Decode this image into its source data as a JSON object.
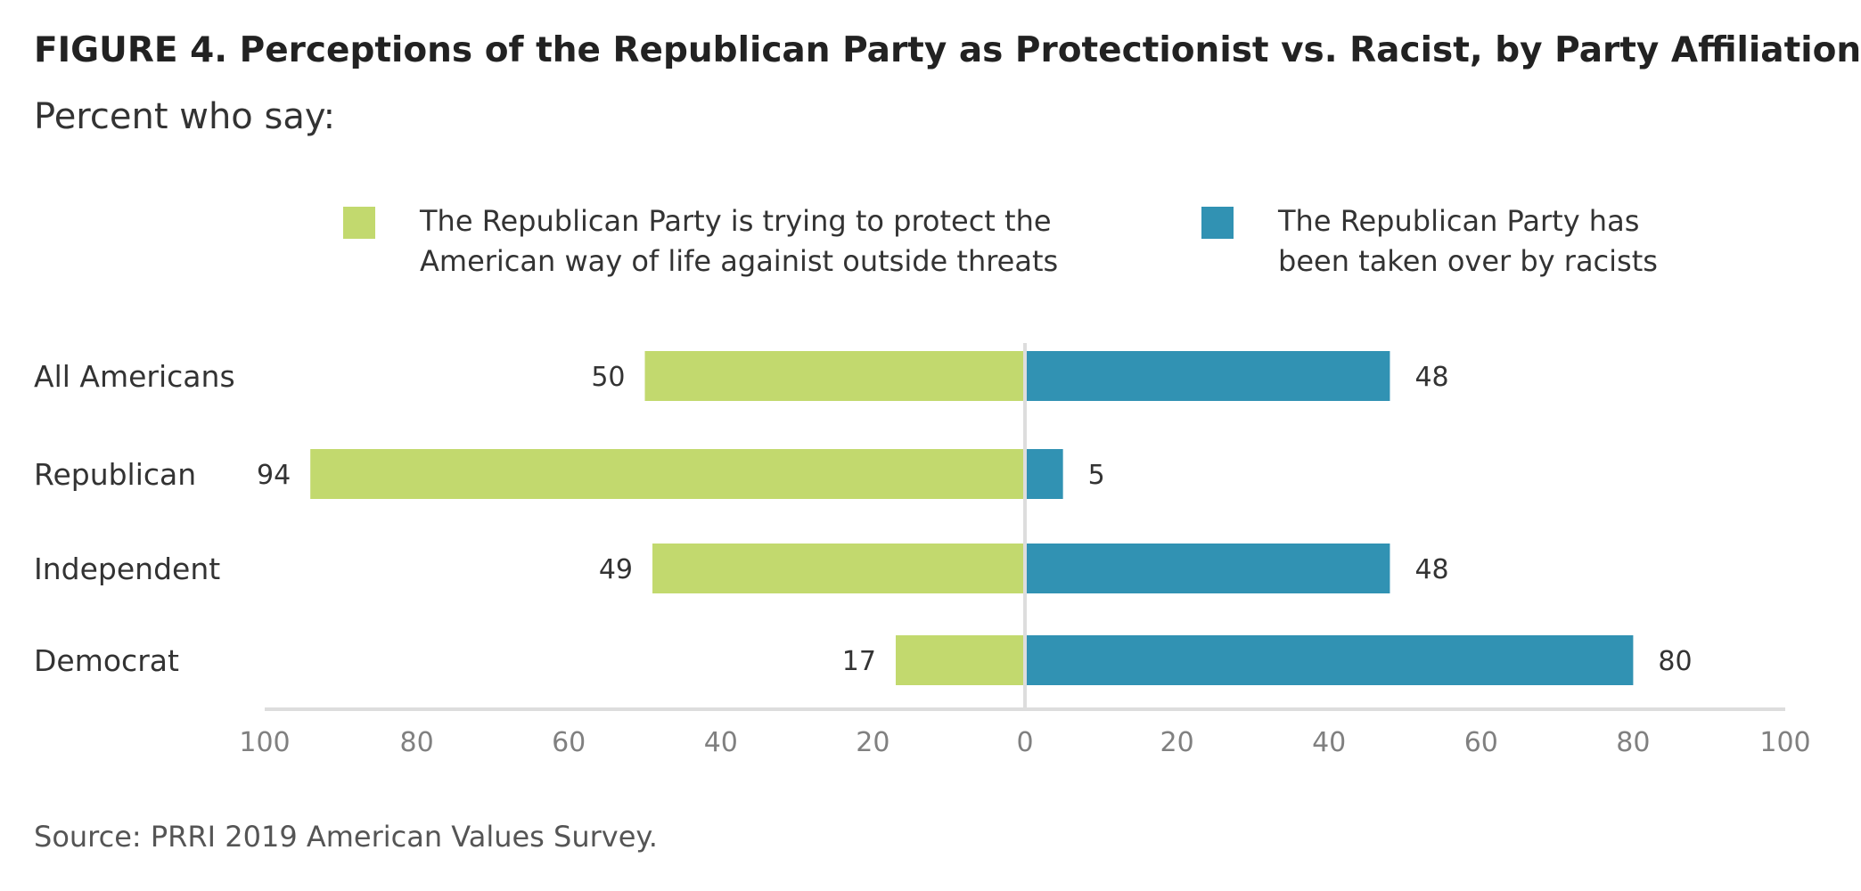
{
  "chart_data": {
    "type": "bar",
    "orientation": "horizontal-diverging",
    "title": "FIGURE 4. Perceptions of the Republican Party as Protectionist vs. Racist, by Party Affiliation",
    "subtitle": "Percent who say:",
    "categories": [
      "All Americans",
      "Republican",
      "Independent",
      "Democrat"
    ],
    "series": [
      {
        "name": "The Republican Party is trying to protect the American way of life againist outside threats",
        "name_lines": [
          "The Republican Party is trying to protect the",
          "American way of life againist outside threats"
        ],
        "color": "#c2d96e",
        "side": "left",
        "values": [
          50,
          94,
          49,
          17
        ]
      },
      {
        "name": "The Republican Party has been taken over by racists",
        "name_lines": [
          "The Republican Party has",
          "been taken over by racists"
        ],
        "color": "#3192b3",
        "side": "right",
        "values": [
          48,
          5,
          48,
          80
        ]
      }
    ],
    "xlim": [
      -100,
      100
    ],
    "x_ticks": [
      -100,
      -80,
      -60,
      -40,
      -20,
      0,
      20,
      40,
      60,
      80,
      100
    ],
    "x_tick_labels": [
      "100",
      "80",
      "60",
      "40",
      "20",
      "0",
      "20",
      "40",
      "60",
      "80",
      "100"
    ],
    "xlabel": "",
    "ylabel": "",
    "grid": false,
    "legend_position": "top"
  },
  "colors": {
    "protect": "#c2d96e",
    "racists": "#3192b3",
    "axis": "#dddddd",
    "text": "#333333",
    "tick_text": "#808080"
  },
  "source": "Source: PRRI 2019 American Values Survey."
}
